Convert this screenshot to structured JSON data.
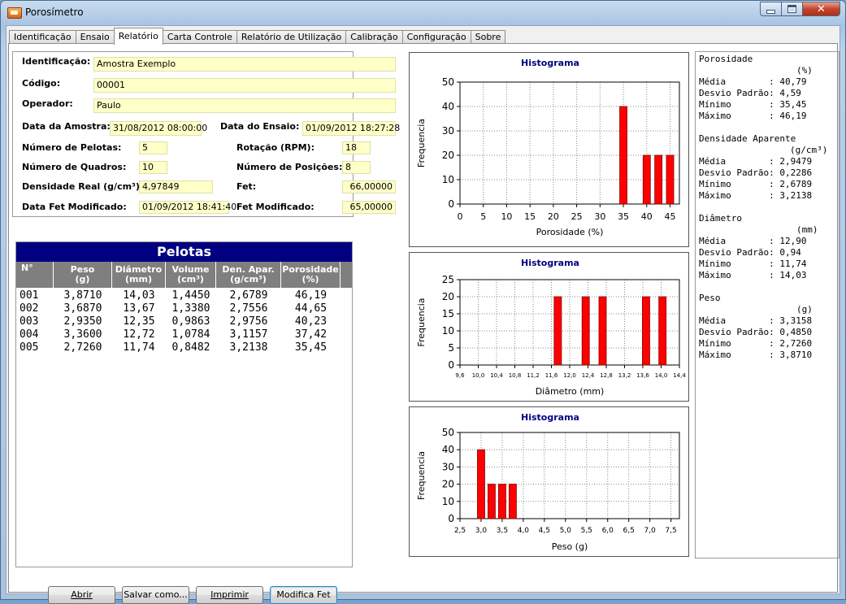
{
  "window": {
    "title": "Porosímetro"
  },
  "tabs": [
    "Identificação",
    "Ensaio",
    "Relatório",
    "Carta Controle",
    "Relatório de Utilização",
    "Calibração",
    "Configuração",
    "Sobre"
  ],
  "active_tab": 2,
  "info": {
    "identificacao_label": "Identificação:",
    "identificacao": "Amostra Exemplo",
    "codigo_label": "Código:",
    "codigo": "00001",
    "operador_label": "Operador:",
    "operador": "Paulo",
    "data_amostra_label": "Data da Amostra:",
    "data_amostra": "31/08/2012 08:00:00",
    "data_ensaio_label": "Data do Ensaio:",
    "data_ensaio": "01/09/2012 18:27:28",
    "num_pelotas_label": "Número de Pelotas:",
    "num_pelotas": "5",
    "rotacao_label": "Rotação (RPM):",
    "rotacao": "18",
    "num_quadros_label": "Número de Quadros:",
    "num_quadros": "10",
    "num_posicoes_label": "Número de Posições:",
    "num_posicoes": "8",
    "densidade_label": "Densidade Real (g/cm³):",
    "densidade": "4,97849",
    "fet_label": "Fet:",
    "fet": "66,00000",
    "data_fet_label": "Data Fet Modificado:",
    "data_fet": "01/09/2012 18:41:40",
    "fet_mod_label": "Fet Modificado:",
    "fet_mod": "65,00000"
  },
  "table": {
    "title": "Pelotas",
    "headers": [
      [
        "N°",
        ""
      ],
      [
        "Peso",
        "(g)"
      ],
      [
        "Diâmetro",
        "(mm)"
      ],
      [
        "Volume",
        "(cm³)"
      ],
      [
        "Den. Apar.",
        "(g/cm³)"
      ],
      [
        "Porosidade",
        "(%)"
      ]
    ],
    "rows": [
      [
        "001",
        "3,8710",
        "14,03",
        "1,4450",
        "2,6789",
        "46,19"
      ],
      [
        "002",
        "3,6870",
        "13,67",
        "1,3380",
        "2,7556",
        "44,65"
      ],
      [
        "003",
        "2,9350",
        "12,35",
        "0,9863",
        "2,9756",
        "40,23"
      ],
      [
        "004",
        "3,3600",
        "12,72",
        "1,0784",
        "3,1157",
        "37,42"
      ],
      [
        "005",
        "2,7260",
        "11,74",
        "0,8482",
        "3,2138",
        "35,45"
      ]
    ]
  },
  "buttons": {
    "abrir": "Abrir",
    "salvar": "Salvar como...",
    "imprimir": "Imprimir",
    "modifica": "Modifica Fet"
  },
  "chart_data": [
    {
      "type": "bar",
      "title": "Histograma",
      "xlabel": "Porosidade (%)",
      "ylabel": "Frequencia",
      "xlim": [
        0,
        47
      ],
      "ylim": [
        0,
        50
      ],
      "xticks": [
        "0",
        "5",
        "10",
        "15",
        "20",
        "25",
        "30",
        "35",
        "40",
        "45"
      ],
      "yticks": [
        "0",
        "10",
        "20",
        "30",
        "40",
        "50"
      ],
      "bars": [
        {
          "x": 35,
          "y": 40
        },
        {
          "x": 40,
          "y": 20
        },
        {
          "x": 42.5,
          "y": 20
        },
        {
          "x": 45,
          "y": 20
        }
      ],
      "bar_color": "#ff0000",
      "grid": true
    },
    {
      "type": "bar",
      "title": "Histograma",
      "xlabel": "Diâmetro (mm)",
      "ylabel": "Frequencia",
      "xlim": [
        9.6,
        14.4
      ],
      "ylim": [
        0,
        25
      ],
      "xticks": [
        "9,6",
        "10,0",
        "10,4",
        "10,8",
        "11,2",
        "11,6",
        "12,0",
        "12,4",
        "12,8",
        "13,2",
        "13,6",
        "14,0",
        "14,4"
      ],
      "yticks": [
        "0",
        "5",
        "10",
        "15",
        "20",
        "25"
      ],
      "bars": [
        {
          "x": 11.74,
          "y": 20
        },
        {
          "x": 12.35,
          "y": 20
        },
        {
          "x": 12.72,
          "y": 20
        },
        {
          "x": 13.67,
          "y": 20
        },
        {
          "x": 14.03,
          "y": 20
        }
      ],
      "bar_color": "#ff0000",
      "grid": true
    },
    {
      "type": "bar",
      "title": "Histograma",
      "xlabel": "Peso (g)",
      "ylabel": "Frequencia",
      "xlim": [
        2.5,
        7.7
      ],
      "ylim": [
        0,
        50
      ],
      "xticks": [
        "2,5",
        "3,0",
        "3,5",
        "4,0",
        "4,5",
        "5,0",
        "5,5",
        "6,0",
        "6,5",
        "7,0",
        "7,5"
      ],
      "yticks": [
        "0",
        "10",
        "20",
        "30",
        "40",
        "50"
      ],
      "bars": [
        {
          "x": 3.0,
          "y": 40
        },
        {
          "x": 3.25,
          "y": 20
        },
        {
          "x": 3.5,
          "y": 20
        },
        {
          "x": 3.75,
          "y": 20
        }
      ],
      "bar_color": "#ff0000",
      "grid": true
    }
  ],
  "stats": {
    "porosidade": {
      "title": "Porosidade",
      "unit": "(%)",
      "media": "40,79",
      "desvio": "4,59",
      "minimo": "35,45",
      "maximo": "46,19"
    },
    "densidade": {
      "title": "Densidade Aparente",
      "unit": "(g/cm³)",
      "media": "2,9479",
      "desvio": "0,2286",
      "minimo": "2,6789",
      "maximo": "3,2138"
    },
    "diametro": {
      "title": "Diâmetro",
      "unit": "(mm)",
      "media": "12,90",
      "desvio": "0,94",
      "minimo": "11,74",
      "maximo": "14,03"
    },
    "peso": {
      "title": "Peso",
      "unit": "(g)",
      "media": "3,3158",
      "desvio": "0,4850",
      "minimo": "2,7260",
      "maximo": "3,8710"
    },
    "labels": {
      "media": "Média        : ",
      "desvio": "Desvio Padrão: ",
      "minimo": "Mínimo       : ",
      "maximo": "Máximo       : "
    }
  }
}
